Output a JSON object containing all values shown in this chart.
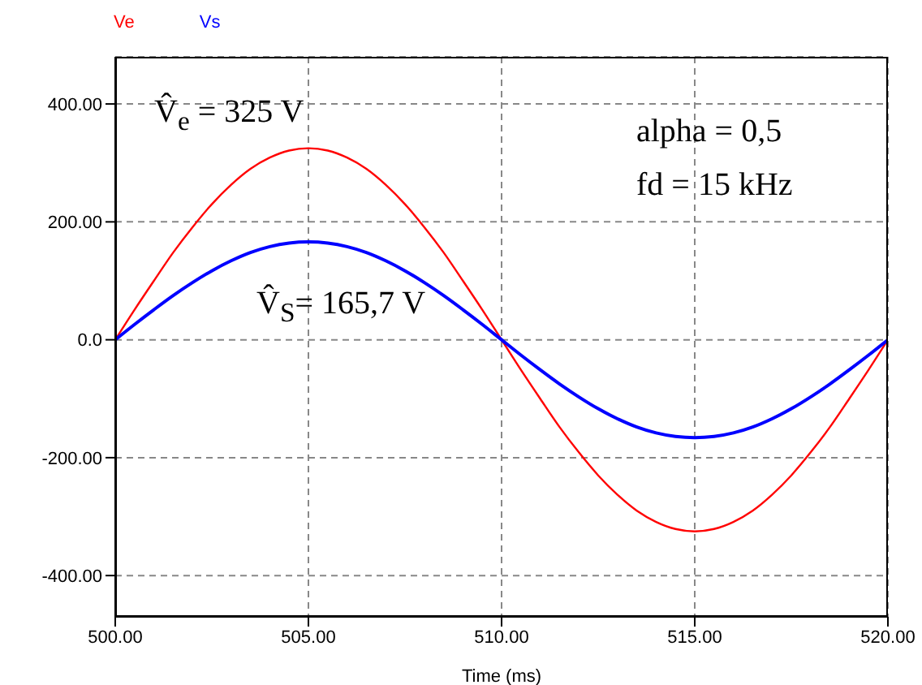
{
  "chart_data": {
    "type": "line",
    "xlabel": "Time (ms)",
    "x": [
      500,
      500.5,
      501,
      501.5,
      502,
      502.5,
      503,
      503.5,
      504,
      504.5,
      505,
      505.5,
      506,
      506.5,
      507,
      507.5,
      508,
      508.5,
      509,
      509.5,
      510,
      510.5,
      511,
      511.5,
      512,
      512.5,
      513,
      513.5,
      514,
      514.5,
      515,
      515.5,
      516,
      516.5,
      517,
      517.5,
      518,
      518.5,
      519,
      519.5,
      520
    ],
    "series": [
      {
        "name": "Ve",
        "color": "#ff0000",
        "values": [
          0,
          51,
          100,
          148,
          191,
          230,
          263,
          290,
          309,
          321,
          325,
          321,
          309,
          290,
          263,
          230,
          191,
          148,
          100,
          51,
          0,
          -51,
          -100,
          -148,
          -191,
          -230,
          -263,
          -290,
          -309,
          -321,
          -325,
          -321,
          -309,
          -290,
          -263,
          -230,
          -191,
          -148,
          -100,
          -51,
          0
        ]
      },
      {
        "name": "Vs",
        "color": "#0000ff",
        "values": [
          0,
          26,
          51,
          75,
          97,
          117,
          134,
          148,
          158,
          164,
          166,
          164,
          158,
          148,
          134,
          117,
          97,
          75,
          51,
          26,
          0,
          -26,
          -51,
          -75,
          -97,
          -117,
          -134,
          -148,
          -158,
          -164,
          -166,
          -164,
          -158,
          -148,
          -134,
          -117,
          -97,
          -75,
          -51,
          -26,
          0
        ]
      }
    ],
    "xlim": [
      500,
      520
    ],
    "xticks": [
      {
        "value": 500,
        "label": "500.00"
      },
      {
        "value": 505,
        "label": "505.00"
      },
      {
        "value": 510,
        "label": "510.00"
      },
      {
        "value": 515,
        "label": "515.00"
      },
      {
        "value": 520,
        "label": "520.00"
      }
    ],
    "ylim": [
      -470,
      480
    ],
    "yticks": [
      {
        "value": -400,
        "label": "-400.00"
      },
      {
        "value": -200,
        "label": "-200.00"
      },
      {
        "value": 0,
        "label": "0.0"
      },
      {
        "value": 200,
        "label": "200.00"
      },
      {
        "value": 400,
        "label": "400.00"
      }
    ],
    "grid": true,
    "legend": "top left",
    "annotations": [
      "V̂$_{e}$ = 325 V",
      "V̂$_{S}$= 165,7 V",
      "alpha = 0,5",
      "fd = 15 kHz"
    ]
  }
}
